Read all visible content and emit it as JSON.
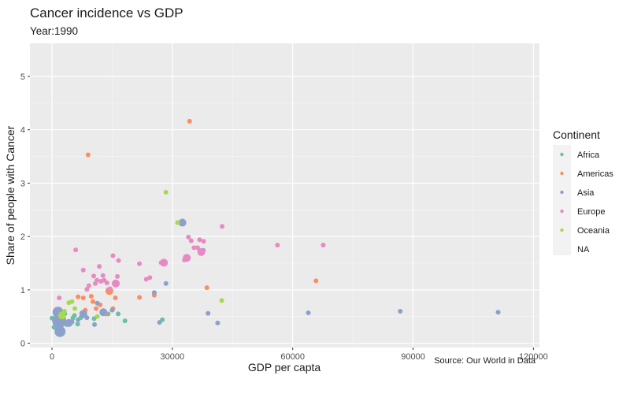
{
  "chart_data": {
    "type": "scatter",
    "title": "Cancer incidence vs GDP",
    "subtitle": "Year:1990",
    "xlabel": "GDP per capta",
    "ylabel": "Share of people with Cancer",
    "caption": "Source: Our World in Data",
    "xlim": [
      -5500,
      121500
    ],
    "ylim": [
      -0.08,
      5.62
    ],
    "x_ticks": [
      0,
      30000,
      60000,
      90000,
      120000
    ],
    "x_tick_labels": [
      "0",
      "30000",
      "60000",
      "90000",
      "120000"
    ],
    "y_ticks": [
      0,
      1,
      2,
      3,
      4,
      5
    ],
    "y_tick_labels": [
      "0",
      "1",
      "2",
      "3",
      "4",
      "5"
    ],
    "grid": true,
    "legend": {
      "title": "Continent",
      "placement": "right",
      "entries": [
        {
          "label": "Africa",
          "color": "#66c2a5"
        },
        {
          "label": "Americas",
          "color": "#fc8d62"
        },
        {
          "label": "Asia",
          "color": "#8da0cb"
        },
        {
          "label": "Europe",
          "color": "#e78ac3"
        },
        {
          "label": "Oceania",
          "color": "#a6d854"
        },
        {
          "label": "NA",
          "color": ""
        }
      ]
    },
    "series": [
      {
        "name": "Africa",
        "color": "#66c2a5",
        "points": [
          [
            0,
            0.47,
            1
          ],
          [
            500,
            0.3,
            1
          ],
          [
            800,
            0.38,
            1
          ],
          [
            1200,
            0.42,
            1
          ],
          [
            1500,
            0.5,
            1
          ],
          [
            2200,
            0.45,
            1
          ],
          [
            2800,
            0.4,
            1
          ],
          [
            3200,
            0.55,
            1
          ],
          [
            3600,
            0.35,
            1
          ],
          [
            5200,
            0.47,
            1
          ],
          [
            5600,
            0.52,
            1
          ],
          [
            6400,
            0.36,
            1
          ],
          [
            7200,
            0.48,
            1
          ],
          [
            10500,
            0.46,
            1
          ],
          [
            14000,
            0.55,
            1
          ],
          [
            16500,
            0.55,
            1
          ],
          [
            18200,
            0.42,
            1
          ],
          [
            27500,
            0.44,
            1
          ]
        ]
      },
      {
        "name": "Americas",
        "color": "#fc8d62",
        "points": [
          [
            6500,
            0.87,
            1
          ],
          [
            7800,
            0.85,
            1
          ],
          [
            8300,
            0.62,
            1
          ],
          [
            9000,
            3.53,
            1
          ],
          [
            9800,
            0.88,
            1
          ],
          [
            10200,
            0.78,
            1
          ],
          [
            11000,
            0.65,
            1
          ],
          [
            12000,
            0.72,
            1
          ],
          [
            13500,
            0.55,
            1
          ],
          [
            14300,
            0.98,
            2
          ],
          [
            15200,
            0.65,
            1
          ],
          [
            15800,
            0.85,
            1
          ],
          [
            21800,
            0.86,
            1
          ],
          [
            25500,
            0.9,
            1
          ],
          [
            34300,
            4.16,
            1
          ],
          [
            38600,
            1.04,
            1
          ],
          [
            65800,
            1.17,
            1
          ]
        ]
      },
      {
        "name": "Asia",
        "color": "#8da0cb",
        "points": [
          [
            1500,
            0.58,
            3
          ],
          [
            1800,
            0.42,
            4
          ],
          [
            2000,
            0.22,
            3
          ],
          [
            4200,
            0.38,
            2
          ],
          [
            5000,
            0.4,
            1
          ],
          [
            6500,
            0.44,
            1
          ],
          [
            7800,
            0.55,
            2
          ],
          [
            8700,
            0.48,
            1
          ],
          [
            10600,
            0.35,
            1
          ],
          [
            11300,
            0.75,
            1
          ],
          [
            12800,
            0.58,
            2
          ],
          [
            15000,
            0.62,
            1
          ],
          [
            25500,
            0.95,
            1
          ],
          [
            26800,
            0.39,
            1
          ],
          [
            28400,
            1.12,
            1
          ],
          [
            32500,
            2.26,
            2
          ],
          [
            37700,
            1.74,
            1
          ],
          [
            38900,
            0.56,
            1
          ],
          [
            41300,
            0.38,
            1
          ],
          [
            63900,
            0.57,
            1
          ],
          [
            86800,
            0.6,
            1
          ],
          [
            111200,
            0.58,
            1
          ]
        ]
      },
      {
        "name": "Europe",
        "color": "#e78ac3",
        "points": [
          [
            1800,
            0.85,
            1
          ],
          [
            5900,
            1.75,
            1
          ],
          [
            7800,
            1.37,
            1
          ],
          [
            8700,
            1.01,
            1
          ],
          [
            9200,
            1.08,
            1
          ],
          [
            10400,
            1.26,
            1
          ],
          [
            10800,
            1.12,
            1
          ],
          [
            11200,
            1.18,
            1
          ],
          [
            11800,
            1.44,
            1
          ],
          [
            12200,
            1.16,
            1
          ],
          [
            12700,
            1.27,
            1
          ],
          [
            13000,
            1.18,
            1
          ],
          [
            13700,
            1.13,
            1
          ],
          [
            14500,
            1.02,
            1
          ],
          [
            15200,
            1.64,
            1
          ],
          [
            15900,
            1.12,
            2
          ],
          [
            16300,
            1.25,
            1
          ],
          [
            16600,
            1.55,
            1
          ],
          [
            21800,
            1.49,
            1
          ],
          [
            23500,
            1.2,
            1
          ],
          [
            24400,
            1.23,
            1
          ],
          [
            27200,
            1.51,
            1
          ],
          [
            27900,
            1.51,
            2
          ],
          [
            33000,
            1.56,
            1
          ],
          [
            33600,
            1.6,
            2
          ],
          [
            34000,
            1.99,
            1
          ],
          [
            34700,
            1.92,
            1
          ],
          [
            35400,
            1.79,
            1
          ],
          [
            36300,
            1.79,
            1
          ],
          [
            36800,
            1.94,
            1
          ],
          [
            37200,
            1.71,
            2
          ],
          [
            37800,
            1.91,
            1
          ],
          [
            42400,
            2.19,
            1
          ],
          [
            56200,
            1.84,
            1
          ],
          [
            67600,
            1.84,
            1
          ]
        ]
      },
      {
        "name": "Oceania",
        "color": "#a6d854",
        "points": [
          [
            2500,
            0.52,
            2
          ],
          [
            3100,
            0.6,
            1
          ],
          [
            4200,
            0.76,
            1
          ],
          [
            5000,
            0.78,
            1
          ],
          [
            5700,
            0.65,
            1
          ],
          [
            11300,
            0.5,
            1
          ],
          [
            28400,
            2.83,
            1
          ],
          [
            31300,
            2.26,
            1
          ],
          [
            42300,
            0.8,
            1
          ]
        ]
      }
    ]
  }
}
